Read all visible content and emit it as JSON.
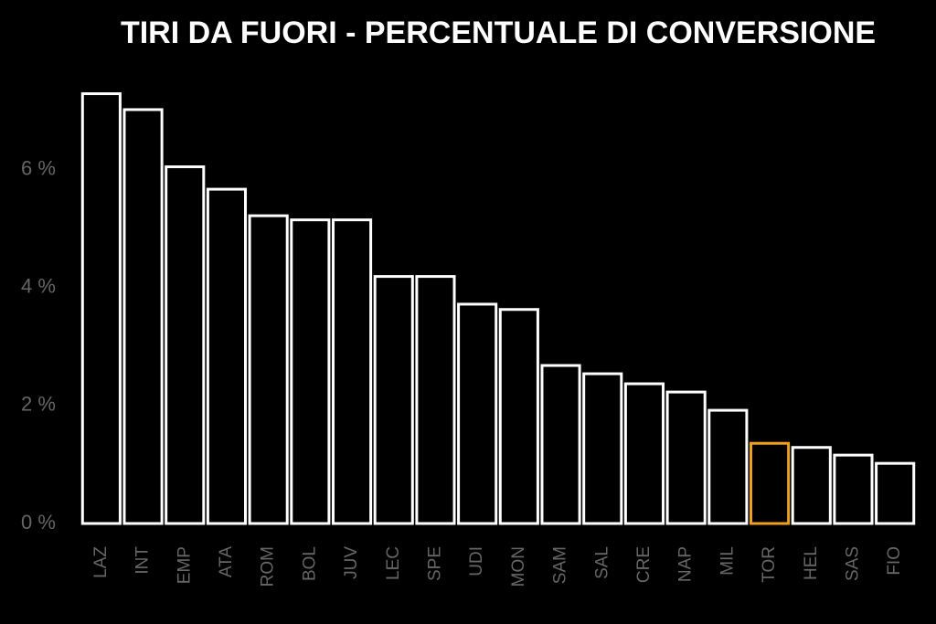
{
  "chart_data": {
    "type": "bar",
    "title": "TIRI DA FUORI - PERCENTUALE DI CONVERSIONE",
    "categories": [
      "LAZ",
      "INT",
      "EMP",
      "ATA",
      "ROM",
      "BOL",
      "JUV",
      "LEC",
      "SPE",
      "UDI",
      "MON",
      "SAM",
      "SAL",
      "CRE",
      "NAP",
      "MIL",
      "TOR",
      "HEL",
      "SAS",
      "FIO"
    ],
    "values": [
      7.29,
      7.02,
      6.05,
      5.67,
      5.22,
      5.15,
      5.15,
      4.19,
      4.19,
      3.72,
      3.63,
      2.68,
      2.54,
      2.37,
      2.23,
      1.92,
      1.36,
      1.29,
      1.16,
      1.02
    ],
    "colors": [
      "#ffffff",
      "#ffffff",
      "#ffffff",
      "#ffffff",
      "#ffffff",
      "#ffffff",
      "#ffffff",
      "#ffffff",
      "#ffffff",
      "#ffffff",
      "#ffffff",
      "#ffffff",
      "#ffffff",
      "#ffffff",
      "#ffffff",
      "#ffffff",
      "#f0a020",
      "#ffffff",
      "#ffffff",
      "#ffffff"
    ],
    "ylim": [
      0,
      7.5
    ],
    "yticks": [
      {
        "value": 0,
        "label": "0 %"
      },
      {
        "value": 2,
        "label": "2 %"
      },
      {
        "value": 4,
        "label": "4 %"
      },
      {
        "value": 6,
        "label": "6 %"
      }
    ],
    "grid": false
  }
}
